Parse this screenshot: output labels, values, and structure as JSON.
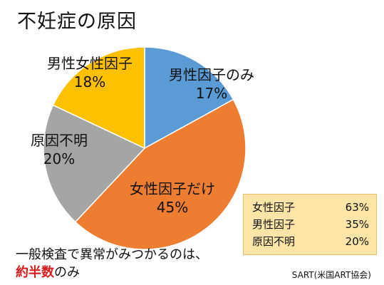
{
  "title": "不妊症の原因",
  "chart_data": {
    "type": "pie",
    "start_angle_deg": 0,
    "direction": "clockwise",
    "slices": [
      {
        "name": "男性因子のみ",
        "value": 17,
        "label": "17%",
        "color": "#5b9bd5"
      },
      {
        "name": "女性因子だけ",
        "value": 45,
        "label": "45%",
        "color": "#ed7d31"
      },
      {
        "name": "原因不明",
        "value": 20,
        "label": "20%",
        "color": "#a5a5a5"
      },
      {
        "name": "男性女性因子",
        "value": 18,
        "label": "18%",
        "color": "#ffc000"
      }
    ]
  },
  "stats": [
    {
      "label": "女性因子",
      "value": "63%"
    },
    {
      "label": "男性因子",
      "value": "35%"
    },
    {
      "label": "原因不明",
      "value": "20%"
    }
  ],
  "note": {
    "line1": "一般検査で異常がみつかるのは、",
    "highlight": "約半数",
    "suffix": "のみ",
    "highlight_color": "#d81b1b"
  },
  "source": "SART(米国ART協会)"
}
